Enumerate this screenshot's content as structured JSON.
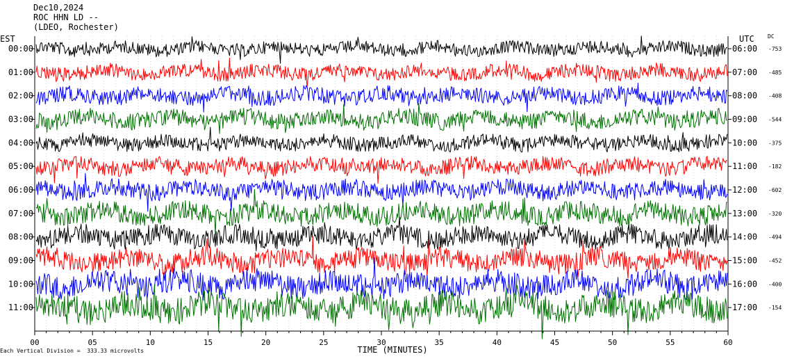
{
  "header": {
    "date": "Dec10,2024",
    "station": "ROC HHN LD --",
    "network": "(LDEO, Rochester)"
  },
  "left_axis_label": "EST",
  "right_axis_label": "UTC",
  "dc_label": "DC",
  "footer_note": "Each Vertical Division =  333.33 microvolts",
  "chart_data": {
    "type": "line",
    "xlabel": "TIME (MINUTES)",
    "xlim": [
      0,
      60
    ],
    "x_ticks": [
      "00",
      "05",
      "10",
      "15",
      "20",
      "25",
      "30",
      "35",
      "40",
      "45",
      "50",
      "55",
      "60"
    ],
    "rows_left": [
      "00:00",
      "01:00",
      "02:00",
      "03:00",
      "04:00",
      "05:00",
      "06:00",
      "07:00",
      "08:00",
      "09:00",
      "10:00",
      "11:00"
    ],
    "rows_right": [
      "06:00",
      "07:00",
      "08:00",
      "09:00",
      "10:00",
      "11:00",
      "12:00",
      "13:00",
      "14:00",
      "15:00",
      "16:00",
      "17:00"
    ],
    "dc_offsets": [
      "-753",
      "-485",
      "-408",
      "-544",
      "-375",
      "-182",
      "-602",
      "-320",
      "-494",
      "-452",
      "-400",
      "-154"
    ],
    "trace_colors": [
      "#000000",
      "#ff0000",
      "#0000ff",
      "#007000"
    ],
    "grid": true
  }
}
